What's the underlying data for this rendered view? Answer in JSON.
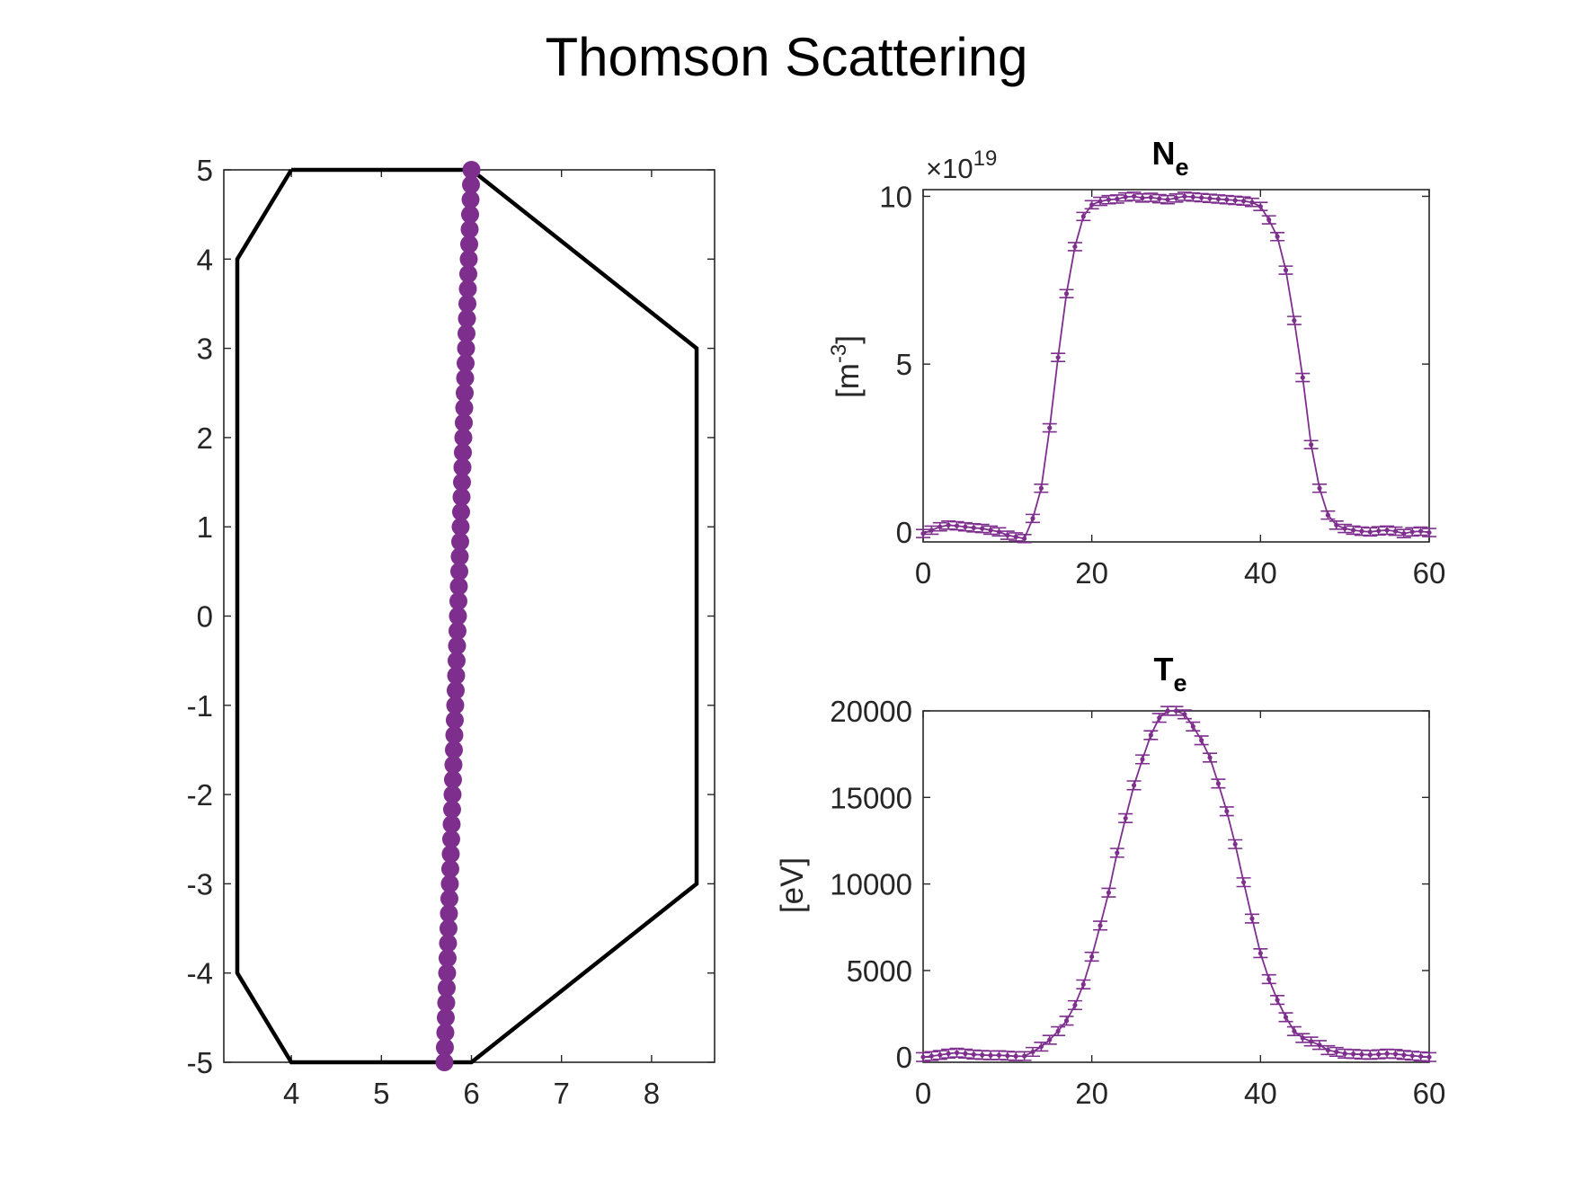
{
  "figure": {
    "title": "Thomson Scattering",
    "colors": {
      "series": "#7E2F8E",
      "vessel": "#000000",
      "axes": "#262626"
    }
  },
  "chart_data": [
    {
      "type": "scatter",
      "name": "vessel-cross-section",
      "xlim": [
        3.25,
        8.7
      ],
      "ylim": [
        -5,
        5
      ],
      "xticks": [
        "4",
        "5",
        "6",
        "7",
        "8"
      ],
      "yticks": [
        "-5",
        "-4",
        "-3",
        "-2",
        "-1",
        "0",
        "1",
        "2",
        "3",
        "4",
        "5"
      ],
      "vessel_outline": [
        [
          4,
          5
        ],
        [
          6,
          5
        ],
        [
          8.5,
          3
        ],
        [
          8.5,
          -3
        ],
        [
          6,
          -5
        ],
        [
          4,
          -5
        ],
        [
          3.4,
          -4
        ],
        [
          3.4,
          4
        ],
        [
          4,
          5
        ]
      ],
      "chord": {
        "start": [
          6.0,
          5.0
        ],
        "end": [
          5.7,
          -5.0
        ],
        "n_points": 61
      }
    },
    {
      "type": "line",
      "name": "density-profile",
      "title": "N",
      "title_subscript": "e",
      "ylabel": "[m",
      "ylabel_sup": "-3",
      "ylabel_end": "]",
      "exponent_base": "×10",
      "exponent_power": "19",
      "xlim": [
        0,
        60
      ],
      "ylim": [
        -0.3,
        10.2
      ],
      "xticks": [
        "0",
        "20",
        "40",
        "60"
      ],
      "yticks": [
        "0",
        "5",
        "10"
      ],
      "errorbar": 0.12,
      "x": [
        0,
        1,
        2,
        3,
        4,
        5,
        6,
        7,
        8,
        9,
        10,
        11,
        12,
        13,
        14,
        15,
        16,
        17,
        18,
        19,
        20,
        21,
        22,
        23,
        24,
        25,
        26,
        27,
        28,
        29,
        30,
        31,
        32,
        33,
        34,
        35,
        36,
        37,
        38,
        39,
        40,
        41,
        42,
        43,
        44,
        45,
        46,
        47,
        48,
        49,
        50,
        51,
        52,
        53,
        54,
        55,
        56,
        57,
        58,
        59,
        60
      ],
      "y": [
        -0.05,
        0.05,
        0.15,
        0.2,
        0.18,
        0.15,
        0.12,
        0.1,
        0.05,
        0.0,
        -0.1,
        -0.15,
        -0.2,
        0.4,
        1.3,
        3.1,
        5.2,
        7.1,
        8.5,
        9.4,
        9.75,
        9.85,
        9.9,
        9.92,
        9.98,
        10.0,
        9.95,
        9.97,
        9.93,
        9.9,
        9.95,
        10.0,
        9.98,
        9.96,
        9.94,
        9.92,
        9.9,
        9.88,
        9.86,
        9.82,
        9.7,
        9.3,
        8.8,
        7.8,
        6.3,
        4.6,
        2.6,
        1.3,
        0.5,
        0.2,
        0.1,
        0.05,
        0.02,
        0.0,
        0.03,
        0.05,
        0.02,
        -0.05,
        0.0,
        0.02,
        -0.02
      ]
    },
    {
      "type": "line",
      "name": "temperature-profile",
      "title": "T",
      "title_subscript": "e",
      "ylabel": "[eV]",
      "xlim": [
        0,
        60
      ],
      "ylim": [
        -300,
        20000
      ],
      "xticks": [
        "0",
        "20",
        "40",
        "60"
      ],
      "yticks": [
        "0",
        "5000",
        "10000",
        "15000",
        "20000"
      ],
      "errorbar": 250,
      "x": [
        0,
        1,
        2,
        3,
        4,
        5,
        6,
        7,
        8,
        9,
        10,
        11,
        12,
        13,
        14,
        15,
        16,
        17,
        18,
        19,
        20,
        21,
        22,
        23,
        24,
        25,
        26,
        27,
        28,
        29,
        30,
        31,
        32,
        33,
        34,
        35,
        36,
        37,
        38,
        39,
        40,
        41,
        42,
        43,
        44,
        45,
        46,
        47,
        48,
        49,
        50,
        51,
        52,
        53,
        54,
        55,
        56,
        57,
        58,
        59,
        60
      ],
      "y": [
        0,
        60,
        120,
        200,
        250,
        200,
        150,
        120,
        100,
        110,
        80,
        50,
        60,
        300,
        600,
        1000,
        1500,
        2100,
        3000,
        4200,
        5800,
        7600,
        9500,
        11800,
        13800,
        15700,
        17200,
        18600,
        19600,
        20000,
        20000,
        19800,
        19100,
        18300,
        17300,
        15800,
        14200,
        12300,
        10100,
        8000,
        6000,
        4500,
        3300,
        2300,
        1500,
        1100,
        900,
        700,
        400,
        300,
        200,
        180,
        150,
        130,
        160,
        200,
        180,
        120,
        80,
        40,
        0
      ]
    }
  ]
}
